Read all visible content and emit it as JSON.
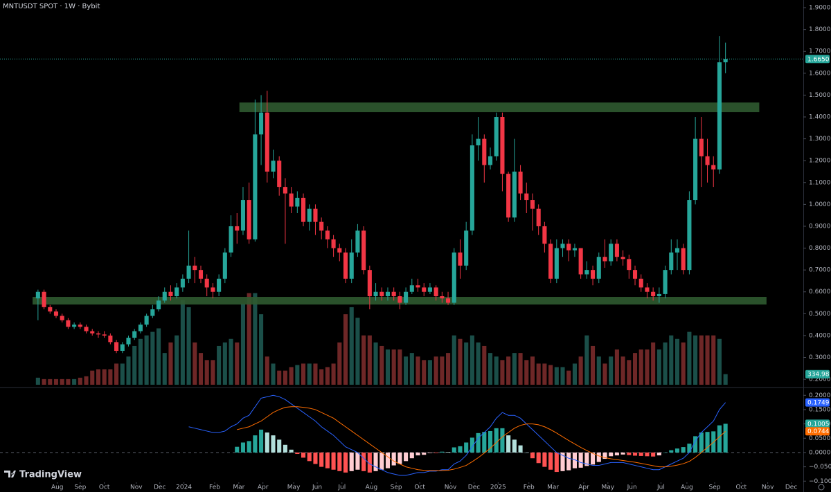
{
  "chart_data": {
    "type": "candlestick",
    "title": "MNTUSDT SPOT · 1W · Bybit",
    "watermark": "TradingView",
    "colors": {
      "up": "#26a69a",
      "down": "#f23645"
    },
    "xlim": [
      -6.3,
      126.9
    ],
    "xticks": [
      {
        "value": 3.2,
        "label": "Aug"
      },
      {
        "value": 7.0,
        "label": "Sep"
      },
      {
        "value": 11.0,
        "label": "Oct"
      },
      {
        "value": 16.3,
        "label": "Nov"
      },
      {
        "value": 20.2,
        "label": "Dec"
      },
      {
        "value": 24.2,
        "label": "2024"
      },
      {
        "value": 29.3,
        "label": "Feb"
      },
      {
        "value": 33.3,
        "label": "Mar"
      },
      {
        "value": 37.3,
        "label": "Apr"
      },
      {
        "value": 42.4,
        "label": "May"
      },
      {
        "value": 46.3,
        "label": "Jun"
      },
      {
        "value": 50.4,
        "label": "Jul"
      },
      {
        "value": 55.3,
        "label": "Aug"
      },
      {
        "value": 59.4,
        "label": "Sep"
      },
      {
        "value": 63.3,
        "label": "Oct"
      },
      {
        "value": 68.4,
        "label": "Nov"
      },
      {
        "value": 72.3,
        "label": "Dec"
      },
      {
        "value": 76.3,
        "label": "2025"
      },
      {
        "value": 81.4,
        "label": "Feb"
      },
      {
        "value": 85.4,
        "label": "Mar"
      },
      {
        "value": 90.5,
        "label": "Apr"
      },
      {
        "value": 94.5,
        "label": "May"
      },
      {
        "value": 98.5,
        "label": "Jun"
      },
      {
        "value": 103.3,
        "label": "Jul"
      },
      {
        "value": 107.6,
        "label": "Aug"
      },
      {
        "value": 112.2,
        "label": "Sep"
      },
      {
        "value": 116.6,
        "label": "Oct"
      },
      {
        "value": 121.0,
        "label": "Nov"
      },
      {
        "value": 124.9,
        "label": "Dec"
      }
    ],
    "ylim": [
      0.175,
      1.935
    ],
    "yticks": [
      {
        "value": 0.2,
        "label": "0.2000"
      },
      {
        "value": 0.3,
        "label": "0.3000"
      },
      {
        "value": 0.4,
        "label": "0.4000"
      },
      {
        "value": 0.5,
        "label": "0.5000"
      },
      {
        "value": 0.6,
        "label": "0.6000"
      },
      {
        "value": 0.7,
        "label": "0.7000"
      },
      {
        "value": 0.8,
        "label": "0.8000"
      },
      {
        "value": 0.9,
        "label": "0.9000"
      },
      {
        "value": 1.0,
        "label": "1.0000"
      },
      {
        "value": 1.1,
        "label": "1.1000"
      },
      {
        "value": 1.2,
        "label": "1.2000"
      },
      {
        "value": 1.3,
        "label": "1.3000"
      },
      {
        "value": 1.4,
        "label": "1.4000"
      },
      {
        "value": 1.5,
        "label": "1.5000"
      },
      {
        "value": 1.6,
        "label": "1.6000"
      },
      {
        "value": 1.7,
        "label": "1.7000"
      },
      {
        "value": 1.8,
        "label": "1.8000"
      },
      {
        "value": 1.9,
        "label": "1.9000"
      }
    ],
    "grid": false,
    "open": [
      0.57,
      0.6,
      0.53,
      0.51,
      0.49,
      0.47,
      0.44,
      0.45,
      0.44,
      0.42,
      0.41,
      0.405,
      0.4,
      0.37,
      0.33,
      0.36,
      0.39,
      0.42,
      0.45,
      0.49,
      0.52,
      0.56,
      0.6,
      0.58,
      0.62,
      0.66,
      0.72,
      0.7,
      0.66,
      0.62,
      0.6,
      0.66,
      0.78,
      0.9,
      0.88,
      1.02,
      0.84,
      1.32,
      1.42,
      1.15,
      1.2,
      1.08,
      1.05,
      0.99,
      1.03,
      0.92,
      0.98,
      0.92,
      0.88,
      0.84,
      0.8,
      0.78,
      0.66,
      0.78,
      0.88,
      0.7,
      0.58,
      0.6,
      0.58,
      0.6,
      0.58,
      0.55,
      0.6,
      0.63,
      0.62,
      0.6,
      0.62,
      0.58,
      0.57,
      0.55,
      0.78,
      0.72,
      0.88,
      1.27,
      1.3,
      1.18,
      1.22,
      1.4,
      1.14,
      0.94,
      1.15,
      1.05,
      1.02,
      0.98,
      0.9,
      0.82,
      0.66,
      0.8,
      0.82,
      0.79,
      0.8,
      0.68,
      0.7,
      0.66,
      0.76,
      0.74,
      0.82,
      0.76,
      0.75,
      0.7,
      0.66,
      0.62,
      0.6,
      0.58,
      0.59,
      0.7,
      0.78,
      0.8,
      0.7,
      1.02,
      1.3,
      1.22,
      1.18,
      1.16,
      1.65
    ],
    "high": [
      0.61,
      0.61,
      0.54,
      0.52,
      0.5,
      0.48,
      0.46,
      0.46,
      0.45,
      0.43,
      0.42,
      0.42,
      0.41,
      0.38,
      0.37,
      0.4,
      0.43,
      0.46,
      0.5,
      0.54,
      0.58,
      0.62,
      0.63,
      0.64,
      0.68,
      0.88,
      0.76,
      0.72,
      0.68,
      0.64,
      0.68,
      0.8,
      0.95,
      0.96,
      1.08,
      1.1,
      1.48,
      1.5,
      1.52,
      1.25,
      1.22,
      1.12,
      1.08,
      1.06,
      1.05,
      1.0,
      1.0,
      0.94,
      0.9,
      0.86,
      0.82,
      0.8,
      0.84,
      0.91,
      0.9,
      0.72,
      0.64,
      0.62,
      0.62,
      0.62,
      0.6,
      0.62,
      0.66,
      0.66,
      0.64,
      0.64,
      0.63,
      0.6,
      0.6,
      0.8,
      0.84,
      0.92,
      1.32,
      1.4,
      1.32,
      1.26,
      1.42,
      1.42,
      1.15,
      1.3,
      1.18,
      1.1,
      1.05,
      1.0,
      0.92,
      0.84,
      0.84,
      0.84,
      0.84,
      0.82,
      0.8,
      0.74,
      0.72,
      0.78,
      0.84,
      0.84,
      0.84,
      0.79,
      0.77,
      0.72,
      0.68,
      0.64,
      0.62,
      0.62,
      0.72,
      0.84,
      0.84,
      0.82,
      1.06,
      1.4,
      1.4,
      1.3,
      1.22,
      1.77,
      1.74
    ],
    "low": [
      0.47,
      0.52,
      0.5,
      0.48,
      0.46,
      0.43,
      0.43,
      0.43,
      0.41,
      0.4,
      0.39,
      0.39,
      0.36,
      0.32,
      0.32,
      0.35,
      0.38,
      0.41,
      0.44,
      0.48,
      0.51,
      0.55,
      0.56,
      0.57,
      0.6,
      0.64,
      0.64,
      0.64,
      0.58,
      0.57,
      0.58,
      0.64,
      0.76,
      0.82,
      0.86,
      0.82,
      0.83,
      1.18,
      1.1,
      1.12,
      1.04,
      0.82,
      0.96,
      0.96,
      0.9,
      0.88,
      0.86,
      0.84,
      0.8,
      0.76,
      0.74,
      0.64,
      0.64,
      0.76,
      0.68,
      0.52,
      0.56,
      0.56,
      0.56,
      0.56,
      0.52,
      0.54,
      0.59,
      0.6,
      0.58,
      0.59,
      0.56,
      0.55,
      0.54,
      0.54,
      0.66,
      0.7,
      0.86,
      1.2,
      1.1,
      1.16,
      1.2,
      1.06,
      0.92,
      0.92,
      1.02,
      0.96,
      0.88,
      0.86,
      0.78,
      0.64,
      0.64,
      0.76,
      0.74,
      0.76,
      0.66,
      0.66,
      0.63,
      0.64,
      0.71,
      0.72,
      0.74,
      0.72,
      0.66,
      0.63,
      0.6,
      0.57,
      0.56,
      0.55,
      0.57,
      0.68,
      0.7,
      0.68,
      0.68,
      1.0,
      1.08,
      1.1,
      1.08,
      1.14,
      1.6
    ],
    "close": [
      0.6,
      0.53,
      0.51,
      0.49,
      0.47,
      0.44,
      0.45,
      0.44,
      0.42,
      0.41,
      0.405,
      0.4,
      0.37,
      0.33,
      0.36,
      0.39,
      0.42,
      0.45,
      0.49,
      0.52,
      0.56,
      0.6,
      0.58,
      0.62,
      0.66,
      0.72,
      0.7,
      0.66,
      0.62,
      0.6,
      0.66,
      0.78,
      0.9,
      0.88,
      1.02,
      0.84,
      1.32,
      1.42,
      1.15,
      1.2,
      1.08,
      1.05,
      0.99,
      1.03,
      0.92,
      0.98,
      0.92,
      0.88,
      0.84,
      0.8,
      0.78,
      0.66,
      0.78,
      0.88,
      0.7,
      0.58,
      0.6,
      0.58,
      0.6,
      0.58,
      0.55,
      0.6,
      0.63,
      0.62,
      0.6,
      0.62,
      0.58,
      0.57,
      0.55,
      0.78,
      0.72,
      0.88,
      1.27,
      1.3,
      1.18,
      1.22,
      1.4,
      1.14,
      0.94,
      1.15,
      1.05,
      1.02,
      0.98,
      0.9,
      0.82,
      0.66,
      0.8,
      0.82,
      0.79,
      0.8,
      0.68,
      0.7,
      0.66,
      0.76,
      0.74,
      0.82,
      0.76,
      0.75,
      0.7,
      0.66,
      0.62,
      0.6,
      0.58,
      0.59,
      0.7,
      0.78,
      0.8,
      0.7,
      1.02,
      1.3,
      1.22,
      1.18,
      1.16,
      1.65,
      1.665
    ],
    "close_last_label": "1.6650",
    "zones": {
      "color": "#2f5a30",
      "items": [
        {
          "low": 1.422,
          "high": 1.466,
          "start": 33.4,
          "end": 119.6
        },
        {
          "low": 0.542,
          "high": 0.577,
          "start": -0.9,
          "end": 120.8
        }
      ]
    },
    "volume": {
      "ylim": [
        0,
        12170
      ],
      "colors": {
        "up": "#1b4f49",
        "down": "#6e2727"
      },
      "values": [
        223,
        178,
        178,
        178,
        178,
        178,
        178,
        223,
        268,
        446,
        491,
        491,
        491,
        669,
        669,
        892,
        1227,
        1450,
        1561,
        1673,
        1784,
        1004,
        1338,
        1561,
        2676,
        2453,
        1338,
        1004,
        781,
        781,
        1227,
        1338,
        1450,
        1338,
        2565,
        2899,
        2899,
        2230,
        892,
        669,
        446,
        446,
        558,
        624,
        669,
        669,
        669,
        491,
        558,
        669,
        1338,
        2230,
        2453,
        2119,
        1561,
        1561,
        1338,
        1227,
        1115,
        1115,
        1115,
        892,
        1004,
        892,
        781,
        781,
        892,
        892,
        1004,
        1561,
        1450,
        1338,
        1561,
        1338,
        1227,
        1004,
        892,
        781,
        892,
        1004,
        1004,
        781,
        892,
        669,
        669,
        624,
        558,
        558,
        446,
        669,
        892,
        1561,
        1227,
        892,
        669,
        892,
        1115,
        892,
        781,
        1004,
        1115,
        1115,
        1338,
        1115,
        1338,
        1561,
        1450,
        1338,
        1673,
        1561,
        1561,
        1561,
        1561,
        1450,
        334.98
      ],
      "last_label": "334.98 M"
    },
    "macd": {
      "ylim": [
        -0.138,
        0.22
      ],
      "yticks": [
        {
          "value": 0.2,
          "label": "0.2000"
        },
        {
          "value": 0.15,
          "label": "0.1500"
        },
        {
          "value": 0.1,
          "label": "0.1000"
        },
        {
          "value": 0.05,
          "label": "0.0500"
        },
        {
          "value": 0,
          "label": "0.0000"
        },
        {
          "value": -0.05,
          "label": "−0.0500"
        },
        {
          "value": -0.1,
          "label": "−0.1000"
        }
      ],
      "hline": 0,
      "histogram": {
        "colors": {
          "pos_up": "#26a69a",
          "pos_down": "#b2dfdb",
          "neg_down": "#ff5252",
          "neg_up": "#ffcdd2"
        },
        "last_label": "0.1005",
        "values": [
          null,
          null,
          null,
          null,
          null,
          null,
          null,
          null,
          null,
          null,
          null,
          null,
          null,
          null,
          null,
          null,
          null,
          null,
          null,
          null,
          null,
          null,
          null,
          null,
          null,
          null,
          null,
          null,
          null,
          null,
          null,
          null,
          null,
          0.02,
          0.035,
          0.04,
          0.06,
          0.08,
          0.07,
          0.06,
          0.045,
          0.027,
          0.01,
          -0.005,
          -0.018,
          -0.03,
          -0.04,
          -0.05,
          -0.055,
          -0.06,
          -0.065,
          -0.07,
          -0.065,
          -0.06,
          -0.065,
          -0.07,
          -0.065,
          -0.06,
          -0.055,
          -0.045,
          -0.04,
          -0.03,
          -0.02,
          -0.01,
          -0.008,
          -0.002,
          -0.002,
          0.003,
          0.002,
          0.018,
          0.022,
          0.035,
          0.052,
          0.068,
          0.072,
          0.075,
          0.085,
          0.085,
          0.06,
          0.045,
          0.025,
          0,
          -0.02,
          -0.037,
          -0.05,
          -0.06,
          -0.068,
          -0.065,
          -0.062,
          -0.055,
          -0.053,
          -0.047,
          -0.042,
          -0.033,
          -0.022,
          -0.013,
          -0.01,
          -0.007,
          -0.009,
          -0.011,
          -0.012,
          -0.013,
          -0.014,
          -0.01,
          0,
          0.008,
          0.014,
          0.019,
          0.031,
          0.057,
          0.07,
          0.072,
          0.074,
          0.095,
          0.1005
        ]
      },
      "macd_line": {
        "color": "#2962ff",
        "last_label": "0.1749",
        "values": [
          null,
          null,
          null,
          null,
          null,
          null,
          null,
          null,
          null,
          null,
          null,
          null,
          null,
          null,
          null,
          null,
          null,
          null,
          null,
          null,
          null,
          null,
          null,
          null,
          null,
          0.09,
          0.085,
          0.08,
          0.075,
          0.07,
          0.07,
          0.075,
          0.09,
          0.1,
          0.12,
          0.13,
          0.16,
          0.19,
          0.195,
          0.2,
          0.195,
          0.185,
          0.17,
          0.155,
          0.14,
          0.125,
          0.11,
          0.09,
          0.075,
          0.06,
          0.04,
          0.02,
          0.01,
          0,
          -0.02,
          -0.04,
          -0.05,
          -0.06,
          -0.07,
          -0.075,
          -0.08,
          -0.08,
          -0.075,
          -0.07,
          -0.07,
          -0.065,
          -0.065,
          -0.06,
          -0.06,
          -0.04,
          -0.03,
          -0.01,
          0.02,
          0.05,
          0.07,
          0.09,
          0.12,
          0.14,
          0.13,
          0.13,
          0.12,
          0.1,
          0.08,
          0.06,
          0.04,
          0.02,
          0,
          -0.01,
          -0.02,
          -0.025,
          -0.035,
          -0.04,
          -0.045,
          -0.045,
          -0.04,
          -0.035,
          -0.035,
          -0.035,
          -0.04,
          -0.045,
          -0.05,
          -0.055,
          -0.06,
          -0.06,
          -0.05,
          -0.04,
          -0.03,
          -0.02,
          0,
          0.04,
          0.07,
          0.09,
          0.11,
          0.15,
          0.1749
        ]
      },
      "signal_line": {
        "color": "#ff6d00",
        "last_label": "0.0744",
        "values": [
          null,
          null,
          null,
          null,
          null,
          null,
          null,
          null,
          null,
          null,
          null,
          null,
          null,
          null,
          null,
          null,
          null,
          null,
          null,
          null,
          null,
          null,
          null,
          null,
          null,
          null,
          null,
          null,
          null,
          null,
          null,
          null,
          null,
          0.08,
          0.085,
          0.09,
          0.1,
          0.11,
          0.125,
          0.14,
          0.15,
          0.158,
          0.16,
          0.16,
          0.158,
          0.155,
          0.15,
          0.14,
          0.13,
          0.12,
          0.105,
          0.09,
          0.075,
          0.06,
          0.045,
          0.03,
          0.015,
          0,
          -0.015,
          -0.03,
          -0.04,
          -0.05,
          -0.055,
          -0.06,
          -0.062,
          -0.063,
          -0.063,
          -0.063,
          -0.062,
          -0.058,
          -0.052,
          -0.045,
          -0.032,
          -0.018,
          -0.002,
          0.015,
          0.035,
          0.055,
          0.07,
          0.085,
          0.095,
          0.1,
          0.1,
          0.097,
          0.09,
          0.08,
          0.068,
          0.055,
          0.042,
          0.03,
          0.018,
          0.007,
          -0.003,
          -0.012,
          -0.018,
          -0.022,
          -0.025,
          -0.028,
          -0.031,
          -0.034,
          -0.038,
          -0.042,
          -0.046,
          -0.05,
          -0.05,
          -0.048,
          -0.044,
          -0.039,
          -0.031,
          -0.017,
          0,
          0.018,
          0.036,
          0.055,
          0.0744
        ]
      }
    }
  }
}
